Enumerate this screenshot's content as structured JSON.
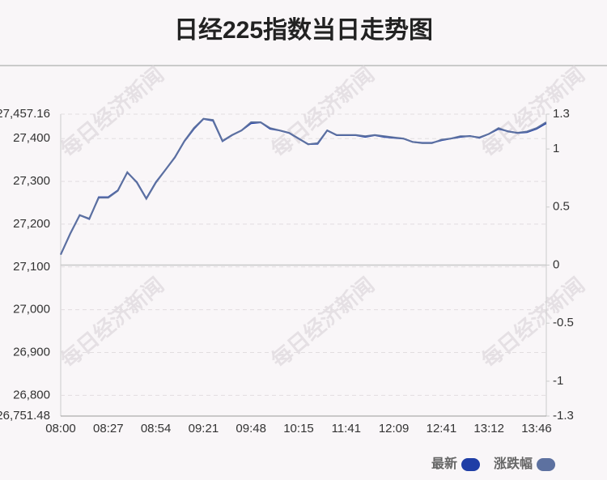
{
  "chart_data": {
    "type": "line",
    "title": "日经225指数当日走势图",
    "watermark": "每日经济新闻",
    "categories": [
      "08:00",
      null,
      null,
      null,
      null,
      "08:27",
      null,
      null,
      null,
      null,
      "08:54",
      null,
      null,
      null,
      null,
      "09:21",
      null,
      null,
      null,
      null,
      "09:48",
      null,
      null,
      null,
      null,
      "10:15",
      null,
      null,
      null,
      null,
      "11:41",
      null,
      null,
      null,
      null,
      "12:09",
      null,
      null,
      null,
      null,
      "12:41",
      null,
      null,
      null,
      null,
      "13:12",
      null,
      null,
      null,
      null,
      "13:46",
      null
    ],
    "series": [
      {
        "name": "最新",
        "color": "#1f3ea6",
        "axis": "y",
        "values": [
          27129,
          27178,
          27221,
          27212,
          27263,
          27263,
          27279,
          27321,
          27298,
          27260,
          27298,
          27327,
          27356,
          27394,
          27423,
          27446,
          27442,
          27394,
          27408,
          27419,
          27436,
          27438,
          27423,
          27419,
          27413,
          27400,
          27387,
          27388,
          27419,
          27408,
          27408,
          27408,
          27404,
          27408,
          27404,
          27402,
          27400,
          27392,
          27390,
          27390,
          27396,
          27400,
          27404,
          27406,
          27402,
          27411,
          27423,
          27417,
          27413,
          27415,
          27423,
          27436
        ]
      },
      {
        "name": "涨跌幅",
        "color": "#5d71a0",
        "axis": "y2",
        "values": [
          0.09,
          0.27,
          0.43,
          0.4,
          0.58,
          0.58,
          0.64,
          0.8,
          0.71,
          0.57,
          0.71,
          0.82,
          0.93,
          1.07,
          1.18,
          1.26,
          1.25,
          1.07,
          1.12,
          1.16,
          1.23,
          1.23,
          1.18,
          1.16,
          1.14,
          1.09,
          1.04,
          1.05,
          1.16,
          1.12,
          1.12,
          1.12,
          1.11,
          1.12,
          1.11,
          1.1,
          1.09,
          1.06,
          1.05,
          1.05,
          1.08,
          1.09,
          1.11,
          1.11,
          1.1,
          1.13,
          1.18,
          1.15,
          1.14,
          1.15,
          1.18,
          1.23
        ]
      }
    ],
    "ylim": [
      26751.48,
      27457.16
    ],
    "yticks": [
      {
        "value": 26751.48,
        "label": "26,751.48"
      },
      {
        "value": 26800,
        "label": "26,800"
      },
      {
        "value": 26900,
        "label": "26,900"
      },
      {
        "value": 27000,
        "label": "27,000"
      },
      {
        "value": 27100,
        "label": "27,100"
      },
      {
        "value": 27200,
        "label": "27,200"
      },
      {
        "value": 27300,
        "label": "27,300"
      },
      {
        "value": 27400,
        "label": "27,400"
      },
      {
        "value": 27457.16,
        "label": "27,457.16"
      }
    ],
    "y2lim": [
      -1.3,
      1.3
    ],
    "y2ticks": [
      -1.3,
      -1,
      -0.5,
      0,
      0.5,
      1,
      1.3
    ],
    "grid": true,
    "legend": "bottom-right"
  }
}
